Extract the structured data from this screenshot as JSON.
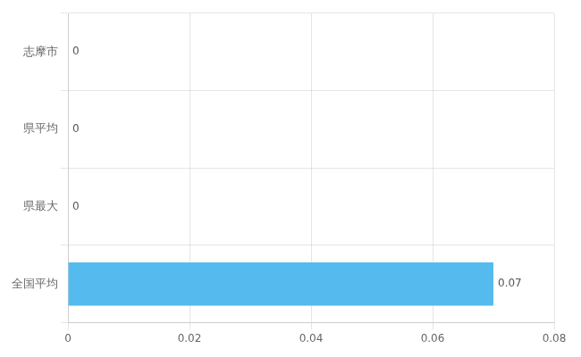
{
  "chart_data": {
    "type": "bar",
    "orientation": "horizontal",
    "categories": [
      "全国平均",
      "県最大",
      "県平均",
      "志摩市"
    ],
    "values": [
      0.07,
      0,
      0,
      0
    ],
    "value_labels": [
      "0.07",
      "0",
      "0",
      "0"
    ],
    "data_labels": true,
    "color": "#55BBEE",
    "xlim": [
      0,
      0.08
    ],
    "xticks": [
      0,
      0.02,
      0.04,
      0.06,
      0.08
    ],
    "grid": true
  }
}
